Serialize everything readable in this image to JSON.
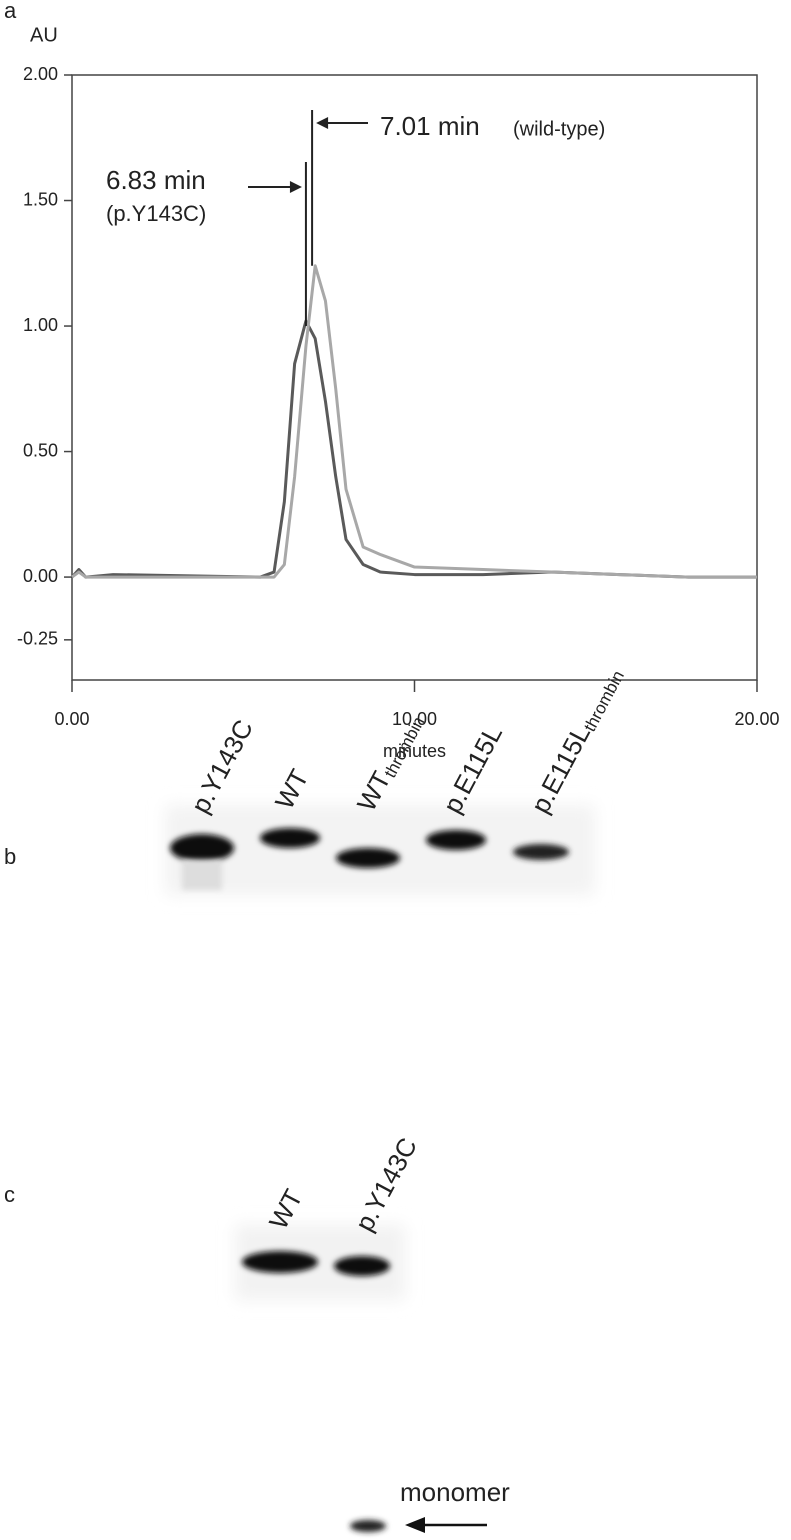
{
  "chart_data": {
    "type": "line",
    "panel_label": "a",
    "y_label": "AU",
    "x_label": "minutes",
    "x": [
      0,
      0.2,
      0.4,
      1.2,
      5.5,
      5.9,
      6.2,
      6.5,
      6.83,
      7.1,
      7.4,
      7.7,
      8.0,
      8.5,
      9,
      10,
      12,
      14,
      16,
      18,
      20
    ],
    "series": [
      {
        "color": "#5a5a5a",
        "values": [
          0,
          0.03,
          0,
          0.01,
          0,
          0.02,
          0.3,
          0.85,
          1.02,
          0.95,
          0.7,
          0.4,
          0.15,
          0.05,
          0.02,
          0.01,
          0.01,
          0.02,
          0.01,
          0,
          0
        ]
      },
      {
        "color": "#a8a8a8",
        "values": [
          0,
          0.02,
          0,
          0,
          0,
          0,
          0.05,
          0.4,
          0.92,
          1.24,
          1.1,
          0.75,
          0.35,
          0.12,
          0.09,
          0.04,
          0.03,
          0.02,
          0.01,
          0,
          0
        ]
      }
    ],
    "annotations": [
      {
        "text": "6.83 min",
        "note": "(p.Y143C)",
        "x": 6.83
      },
      {
        "text": "7.01 min",
        "note": "(wild-type)",
        "x": 7.01
      }
    ],
    "xlim": [
      0,
      20
    ],
    "xticks": [
      {
        "value": 0,
        "label": "0.00"
      },
      {
        "value": 10,
        "label": "10.00"
      },
      {
        "value": 20,
        "label": "20.00"
      }
    ],
    "ylim": [
      -0.41,
      2.0
    ],
    "yticks": [
      {
        "value": 2,
        "label": "2.00"
      },
      {
        "value": 1.5,
        "label": "1.50"
      },
      {
        "value": 1,
        "label": "1.00"
      },
      {
        "value": 0.5,
        "label": "0.50"
      },
      {
        "value": 0,
        "label": "0.00"
      },
      {
        "value": -0.25,
        "label": "-0.25"
      }
    ]
  },
  "panels": [
    {
      "label": "b",
      "lanes": [
        {
          "text": "p.Y143C"
        },
        {
          "text": "WT"
        },
        {
          "text": "WT",
          "sub": "thrombin"
        },
        {
          "text": "p.E115L"
        },
        {
          "text": "p.E115L",
          "sub": "thrombin"
        }
      ]
    },
    {
      "label": "c",
      "lanes": [
        {
          "text": "WT"
        },
        {
          "text": "p.Y143C"
        }
      ],
      "arrow_label": "monomer"
    }
  ]
}
